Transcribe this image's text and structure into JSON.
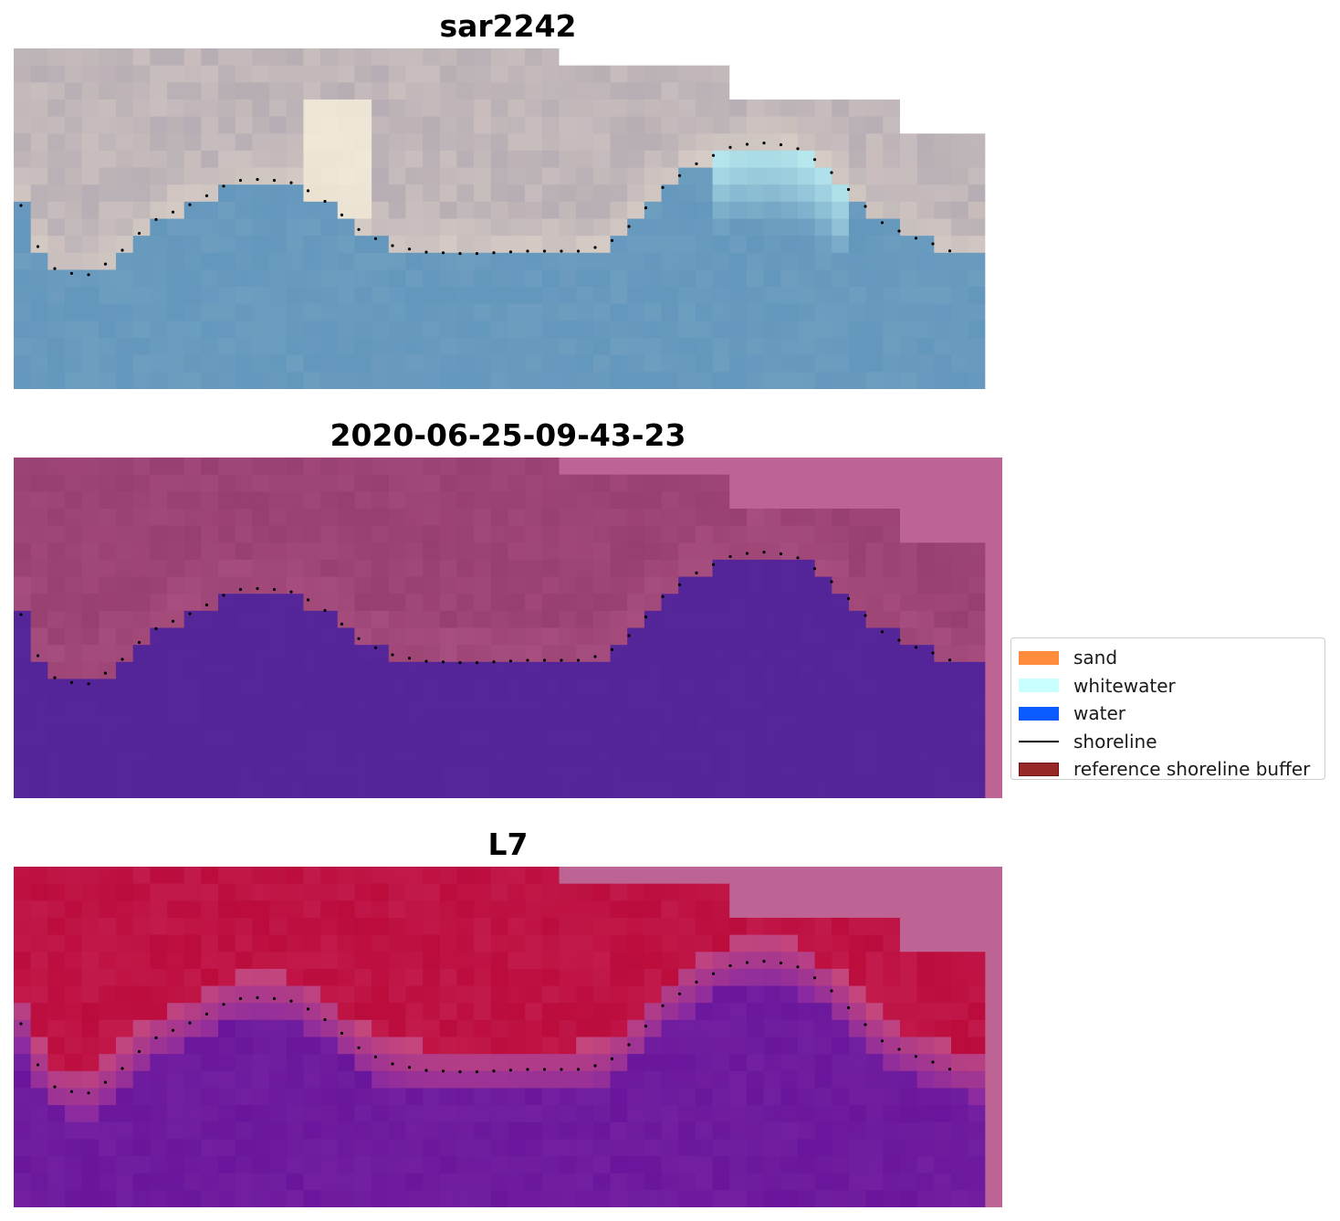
{
  "panels": [
    {
      "title": "sar2242",
      "style": "rgb"
    },
    {
      "title": "2020-06-25-09-43-23",
      "style": "classified"
    },
    {
      "title": "L7",
      "style": "index"
    }
  ],
  "legend": {
    "items": [
      {
        "label": "sand",
        "color": "#ff8c3c",
        "kind": "patch"
      },
      {
        "label": "whitewater",
        "color": "#c8ffff",
        "kind": "patch"
      },
      {
        "label": "water",
        "color": "#0a5aff",
        "kind": "patch"
      },
      {
        "label": "shoreline",
        "color": "#000000",
        "kind": "line"
      },
      {
        "label": "reference shoreline buffer",
        "color": "#962828",
        "kind": "patch-edged",
        "edge": "#6e1414"
      }
    ]
  },
  "colors": {
    "no_data": "#bd6494",
    "rgb_land": "#b6aeb4",
    "rgb_water": "#6d9ec0",
    "rgb_surf": "#c4f5f6",
    "rgb_sand_bright": "#fdf6df",
    "class_land": "#973f70",
    "class_water": "#532598",
    "index_land": "#bb0c3c",
    "index_water": "#6a169c",
    "shoreline_dots": "#000000"
  }
}
